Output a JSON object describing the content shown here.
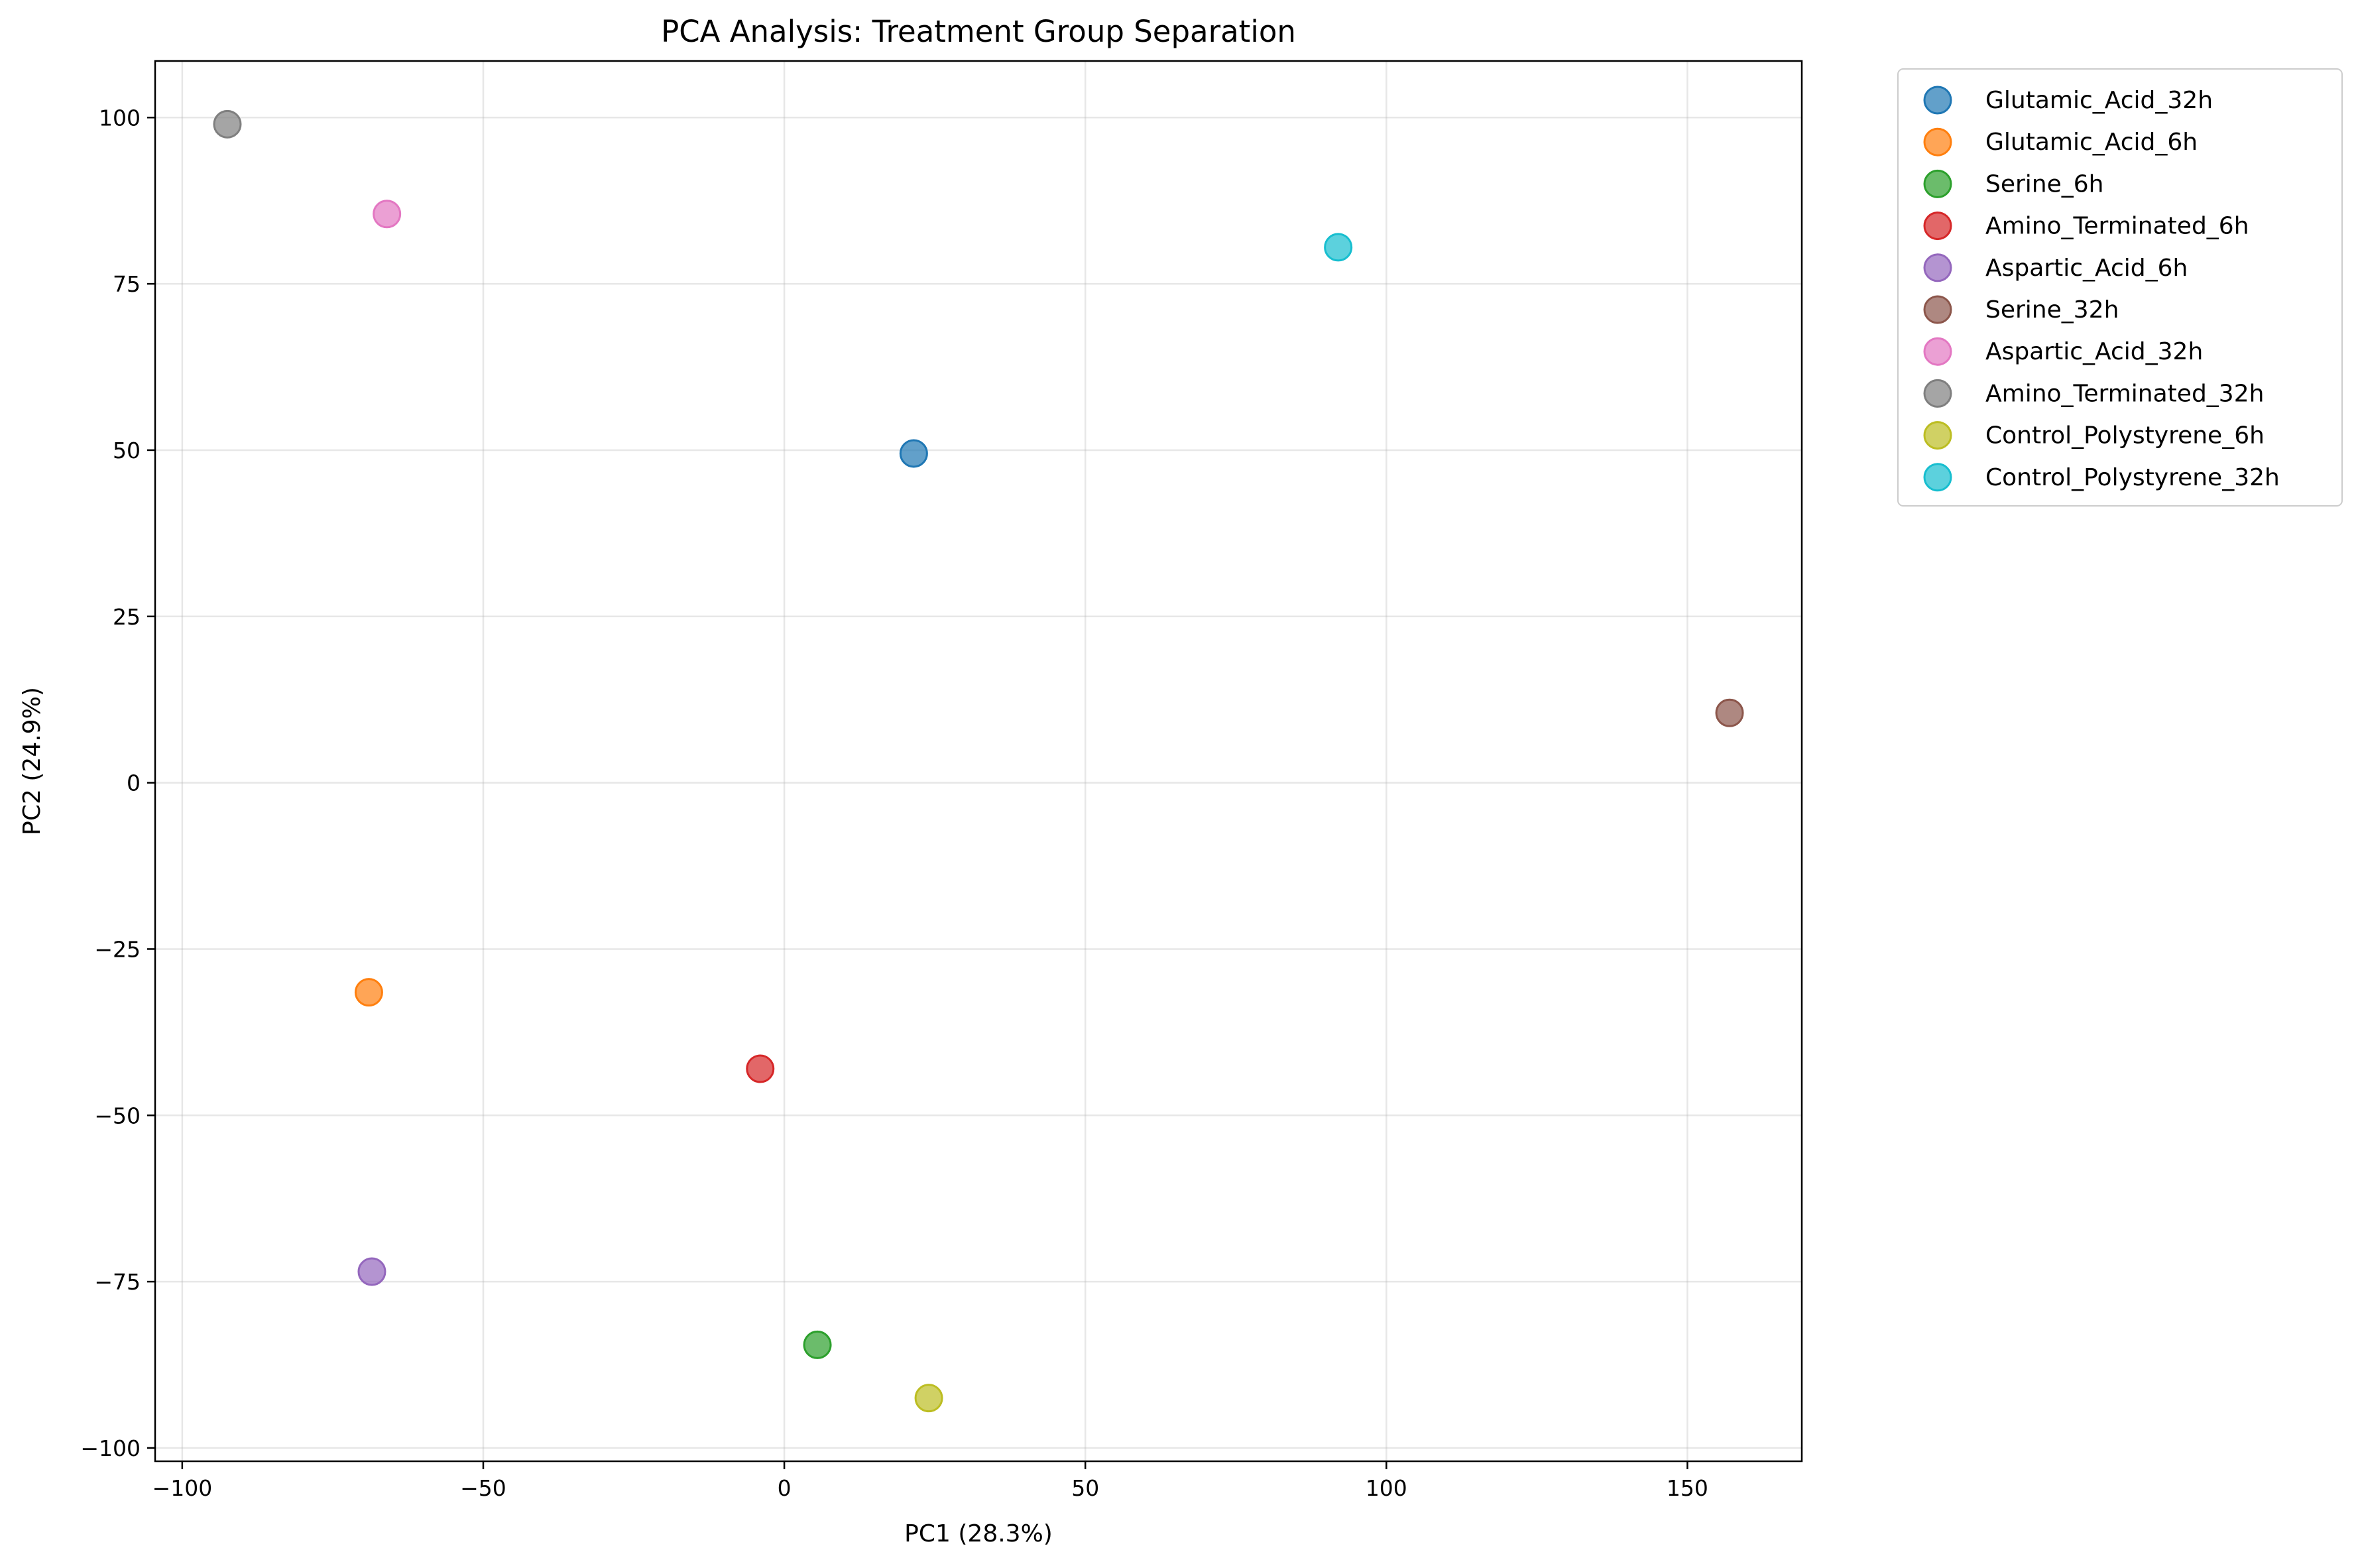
{
  "chart_data": {
    "type": "scatter",
    "title": "PCA Analysis: Treatment Group Separation",
    "xlabel": "PC1 (28.3%)",
    "ylabel": "PC2 (24.9%)",
    "xlim": [
      -104.5,
      169
    ],
    "ylim": [
      -102,
      108.5
    ],
    "xticks": [
      -100,
      -50,
      0,
      50,
      100,
      150
    ],
    "yticks": [
      -100,
      -75,
      -50,
      -25,
      0,
      25,
      50,
      75,
      100
    ],
    "xtick_labels": [
      "−100",
      "−50",
      "0",
      "50",
      "100",
      "150"
    ],
    "ytick_labels": [
      "−100",
      "−75",
      "−50",
      "−25",
      "0",
      "25",
      "50",
      "75",
      "100"
    ],
    "grid": true,
    "legend_position": "outside-right-top",
    "series": [
      {
        "name": "Glutamic_Acid_32h",
        "color": "#1f77b4",
        "x": 21.5,
        "y": 49.5
      },
      {
        "name": "Glutamic_Acid_6h",
        "color": "#ff7f0e",
        "x": -69.0,
        "y": -31.5
      },
      {
        "name": "Serine_6h",
        "color": "#2ca02c",
        "x": 5.5,
        "y": -84.5
      },
      {
        "name": "Amino_Terminated_6h",
        "color": "#d62728",
        "x": -4.0,
        "y": -43.0
      },
      {
        "name": "Aspartic_Acid_6h",
        "color": "#9467bd",
        "x": -68.5,
        "y": -73.5
      },
      {
        "name": "Serine_32h",
        "color": "#8c564b",
        "x": 157.0,
        "y": 10.5
      },
      {
        "name": "Aspartic_Acid_32h",
        "color": "#e377c2",
        "x": -66.0,
        "y": 85.5
      },
      {
        "name": "Amino_Terminated_32h",
        "color": "#7f7f7f",
        "x": -92.5,
        "y": 99.0
      },
      {
        "name": "Control_Polystyrene_6h",
        "color": "#bcbd22",
        "x": 24.0,
        "y": -92.5
      },
      {
        "name": "Control_Polystyrene_32h",
        "color": "#17becf",
        "x": 92.0,
        "y": 80.5
      }
    ]
  }
}
